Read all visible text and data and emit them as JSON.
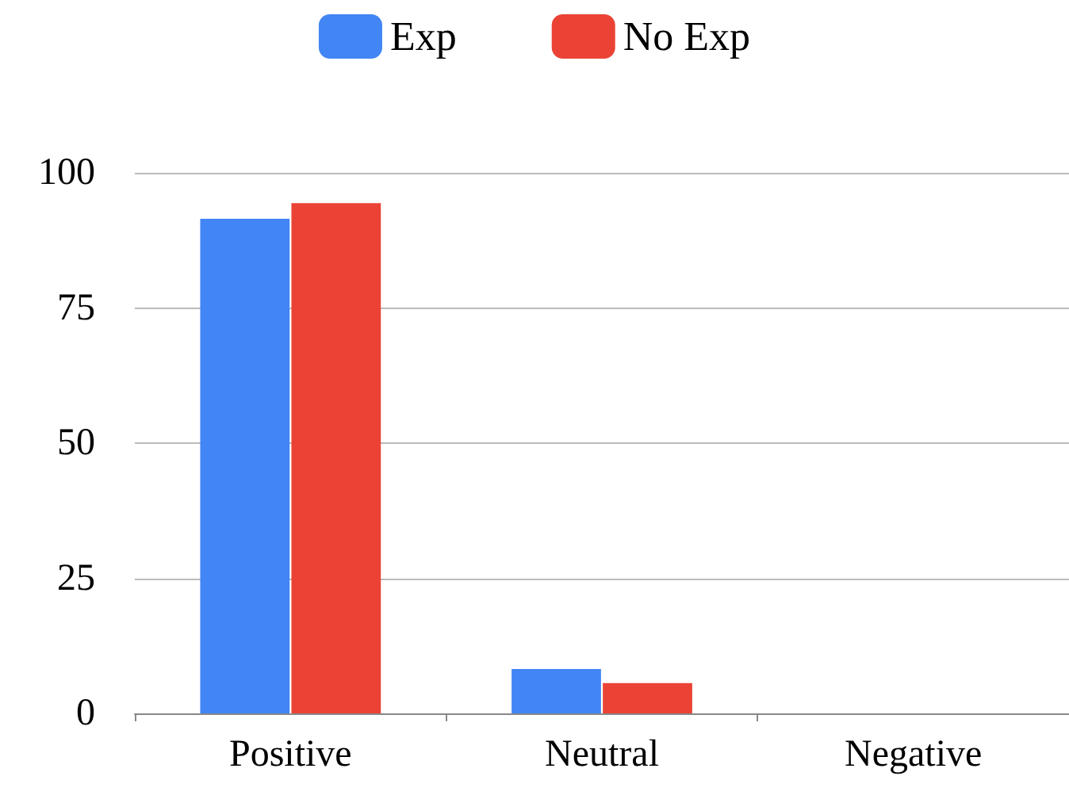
{
  "chart_data": {
    "type": "bar",
    "categories": [
      "Positive",
      "Neutral",
      "Negative"
    ],
    "series": [
      {
        "name": "Exp",
        "color": "#4285f4",
        "values": [
          91.5,
          8.2,
          0
        ]
      },
      {
        "name": "No Exp",
        "color": "#ea4335",
        "values": [
          94.4,
          5.6,
          0
        ]
      }
    ],
    "ylim": [
      0,
      100
    ],
    "yticks": [
      0,
      25,
      50,
      75,
      100
    ],
    "grid": "y",
    "legend": "top"
  }
}
